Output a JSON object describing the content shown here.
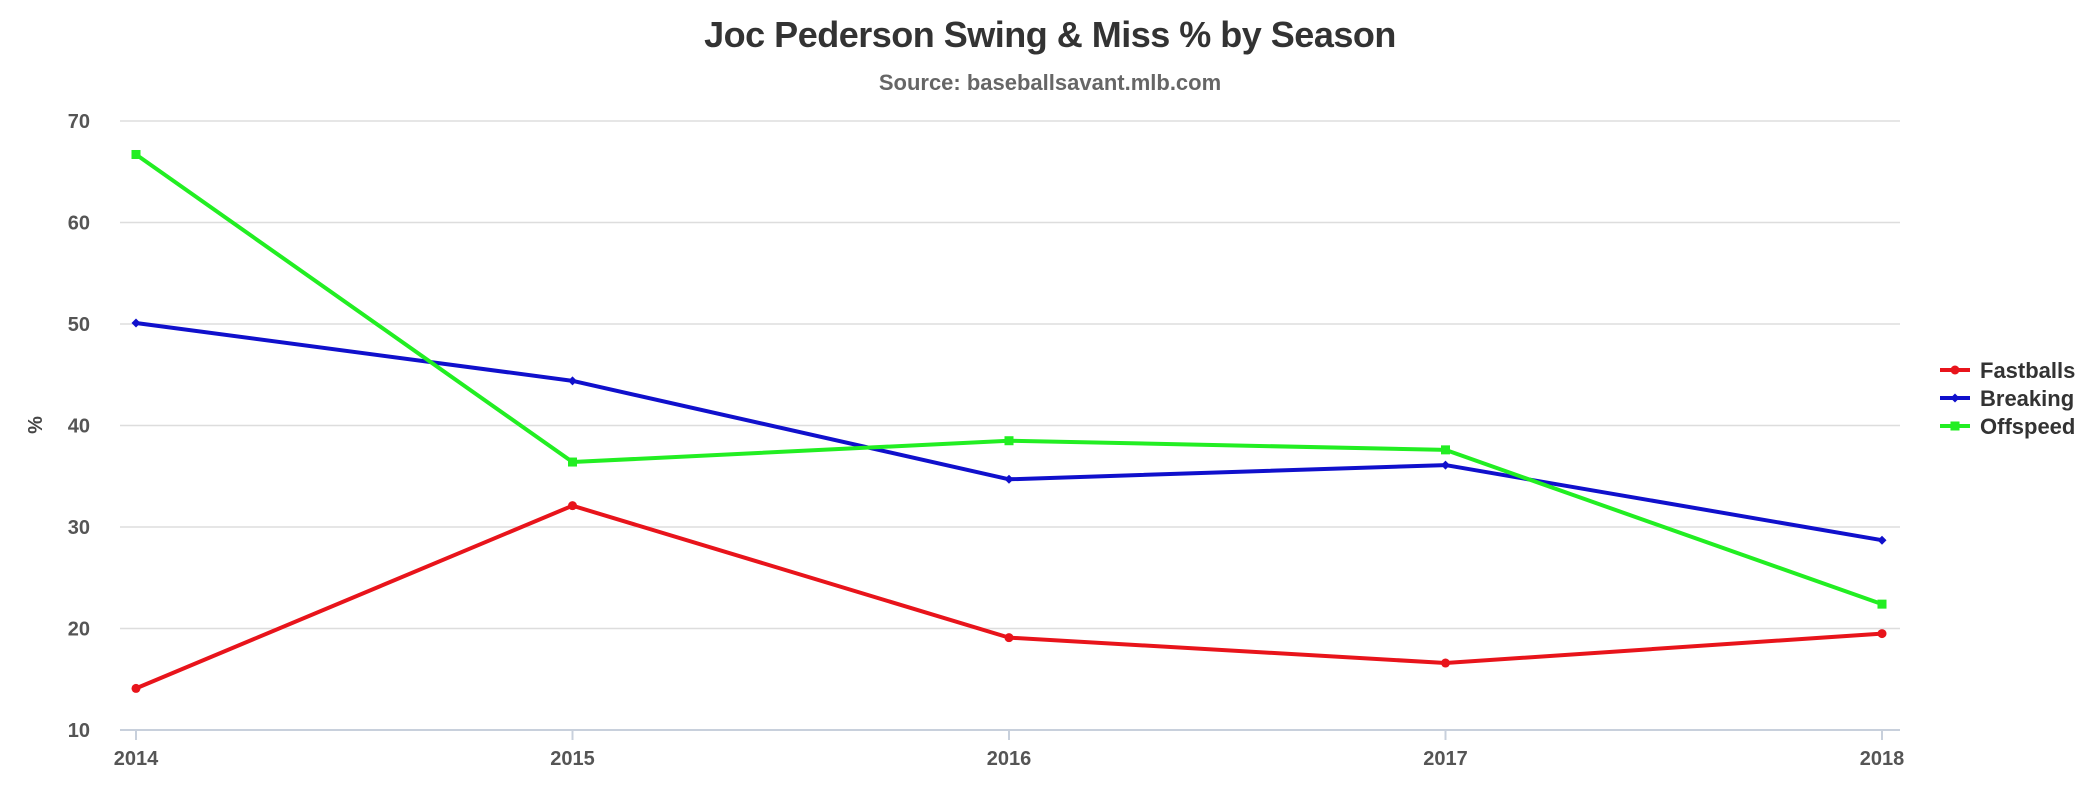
{
  "chart_data": {
    "type": "line",
    "title": "Joc Pederson Swing & Miss % by Season",
    "subtitle": "Source: baseballsavant.mlb.com",
    "xlabel": "",
    "ylabel": "%",
    "categories": [
      "2014",
      "2015",
      "2016",
      "2017",
      "2018"
    ],
    "ylim": [
      10,
      70
    ],
    "yticks": [
      10,
      20,
      30,
      40,
      50,
      60,
      70
    ],
    "grid": true,
    "legend_position": "right",
    "series": [
      {
        "name": "Fastballs",
        "color": "#e8141b",
        "marker": "circle",
        "values": [
          14.1,
          32.1,
          19.1,
          16.6,
          19.5
        ]
      },
      {
        "name": "Breaking",
        "color": "#1010cc",
        "marker": "diamond",
        "values": [
          50.1,
          44.4,
          34.7,
          36.1,
          28.7
        ]
      },
      {
        "name": "Offspeed",
        "color": "#22ee22",
        "marker": "square",
        "values": [
          66.7,
          36.4,
          38.5,
          37.6,
          22.4
        ]
      }
    ]
  }
}
